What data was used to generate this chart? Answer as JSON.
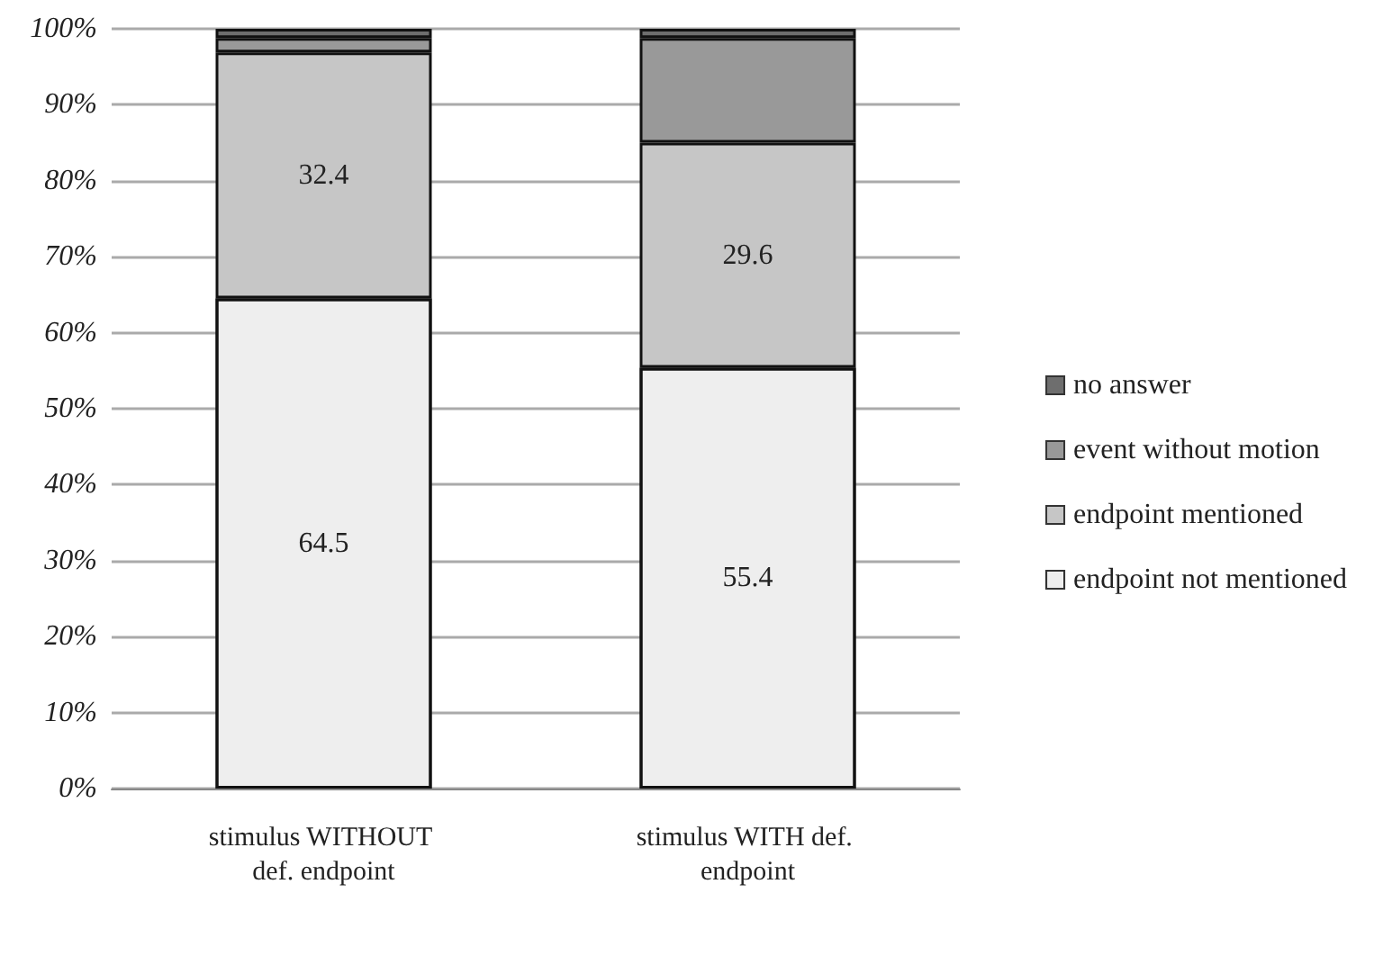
{
  "chart_data": {
    "type": "bar",
    "stacked": true,
    "categories": [
      "stimulus WITHOUT def. endpoint",
      "stimulus WITH def. endpoint"
    ],
    "series": [
      {
        "name": "endpoint not mentioned",
        "color": "#eeeeee",
        "values": [
          64.5,
          55.4
        ],
        "value_labels": [
          "64.5",
          "55.4"
        ]
      },
      {
        "name": "endpoint mentioned",
        "color": "#c6c6c6",
        "values": [
          32.4,
          29.6
        ],
        "value_labels": [
          "32.4",
          "29.6"
        ]
      },
      {
        "name": "event without motion",
        "color": "#999999",
        "values": [
          1.9,
          13.8
        ]
      },
      {
        "name": "no answer",
        "color": "#6e6e6e",
        "values": [
          1.2,
          1.2
        ]
      }
    ],
    "ylim": [
      0,
      100
    ],
    "yticks": [
      {
        "value": 0,
        "label": "0%"
      },
      {
        "value": 10,
        "label": "10%"
      },
      {
        "value": 20,
        "label": "20%"
      },
      {
        "value": 30,
        "label": "30%"
      },
      {
        "value": 40,
        "label": "40%"
      },
      {
        "value": 50,
        "label": "50%"
      },
      {
        "value": 60,
        "label": "60%"
      },
      {
        "value": 70,
        "label": "70%"
      },
      {
        "value": 80,
        "label": "80%"
      },
      {
        "value": 90,
        "label": "90%"
      },
      {
        "value": 100,
        "label": "100%"
      }
    ],
    "grid": "y",
    "legend": "right"
  }
}
